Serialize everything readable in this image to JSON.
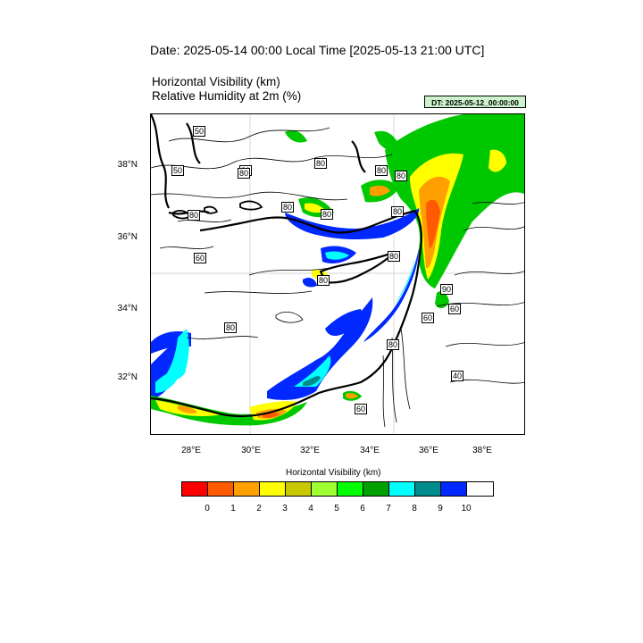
{
  "header": {
    "date_line": "Date: 2025-05-14  00:00 Local Time [2025-05-13  21:00 UTC]",
    "title_line1": "Horizontal Visibility   (km)",
    "title_line2": "Relative Humidity at 2m   (%)",
    "dt_badge": "DT: 2025-05-12_00:00:00"
  },
  "map": {
    "region": "Eastern Mediterranean",
    "lat_labels": [
      "38°N",
      "36°N",
      "34°N",
      "32°N"
    ],
    "lon_labels": [
      "28°E",
      "30°E",
      "32°E",
      "34°E",
      "36°E",
      "38°E"
    ],
    "contour_labels": [
      "50",
      "50",
      "80",
      "80",
      "80",
      "80",
      "80",
      "80",
      "80",
      "80",
      "60",
      "80",
      "80",
      "80",
      "90",
      "60",
      "80",
      "60",
      "40",
      "60",
      "80"
    ]
  },
  "legend": {
    "title": "Horizontal Visibility  (km)",
    "colors": [
      "#ff0000",
      "#ff5a00",
      "#ffa000",
      "#ffff00",
      "#c8c800",
      "#a0ff32",
      "#00ff00",
      "#00a000",
      "#00ffff",
      "#008c8c",
      "#0028ff",
      "#ffffff"
    ],
    "ticks": [
      "0",
      "1",
      "2",
      "3",
      "4",
      "5",
      "6",
      "7",
      "8",
      "9",
      "10"
    ]
  }
}
